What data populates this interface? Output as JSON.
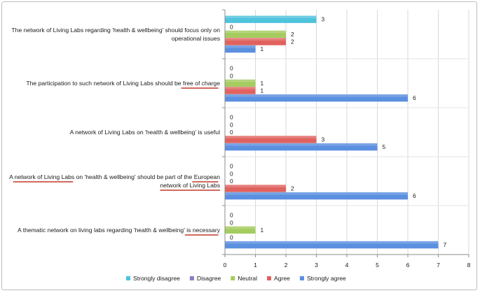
{
  "chart_data": {
    "type": "bar",
    "orientation": "horizontal",
    "categories": [
      [
        "The network of Living Labs regarding 'health & wellbeing' should focus only on",
        "operational issues"
      ],
      [
        "The participation to such network of Living Labs should be free of charge"
      ],
      [
        "A network of Living Labs on 'health & wellbeing' is useful"
      ],
      [
        "A network of Living Labs on 'health & wellbeing' should be part of the European",
        "network of Living Labs"
      ],
      [
        "A thematic network on living labs regarding 'health & wellbeing' is necessary"
      ]
    ],
    "series": [
      {
        "name": "Strongly disagree",
        "color": "#4fc3dc",
        "values": [
          3,
          0,
          0,
          0,
          0
        ]
      },
      {
        "name": "Disagree",
        "color": "#8a7dc6",
        "values": [
          0,
          0,
          0,
          0,
          0
        ]
      },
      {
        "name": "Neutral",
        "color": "#a4cc5e",
        "values": [
          2,
          1,
          0,
          0,
          1
        ]
      },
      {
        "name": "Agree",
        "color": "#e0625e",
        "values": [
          2,
          1,
          3,
          2,
          0
        ]
      },
      {
        "name": "Strongly agree",
        "color": "#5b8fe0",
        "values": [
          1,
          6,
          5,
          6,
          7
        ]
      }
    ],
    "xlim": [
      0,
      8
    ],
    "xticks": [
      "0",
      "1",
      "2",
      "3",
      "4",
      "5",
      "6",
      "7",
      "8"
    ],
    "grid": true,
    "legend_position": "bottom",
    "underline_color": "#c0392b"
  }
}
